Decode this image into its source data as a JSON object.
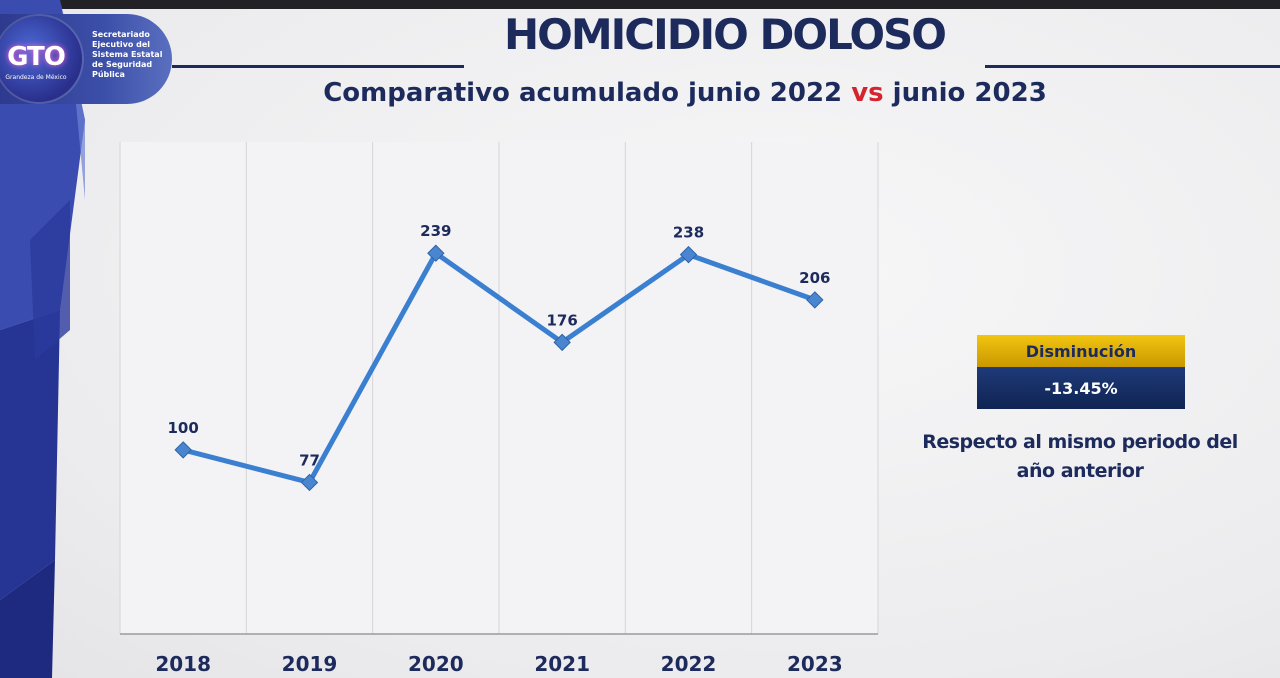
{
  "header": {
    "title": "HOMICIDIO DOLOSO",
    "subtitle_part1": "Comparativo acumulado junio 2022 ",
    "subtitle_vs": "vs",
    "subtitle_part2": " junio 2023"
  },
  "logo": {
    "mark": "GTO",
    "tagline": "Grandeza de México",
    "org_text": "Secretariado Ejecutivo del Sistema Estatal de Seguridad Pública"
  },
  "chart_data": {
    "type": "line",
    "categories": [
      "2018",
      "2019",
      "2020",
      "2021",
      "2022",
      "2023"
    ],
    "values": [
      100,
      77,
      239,
      176,
      238,
      206
    ],
    "title": "",
    "xlabel": "",
    "ylabel": "",
    "ylim": [
      0,
      300
    ],
    "grid": "vertical",
    "legend": "none",
    "colors": {
      "line": "#3a7fd0",
      "marker": "#4a86cf",
      "label": "#1d2b5c"
    }
  },
  "badge": {
    "label": "Disminución",
    "value": "-13.45%"
  },
  "note": {
    "line1": "Respecto al mismo periodo del",
    "line2": "año anterior"
  }
}
